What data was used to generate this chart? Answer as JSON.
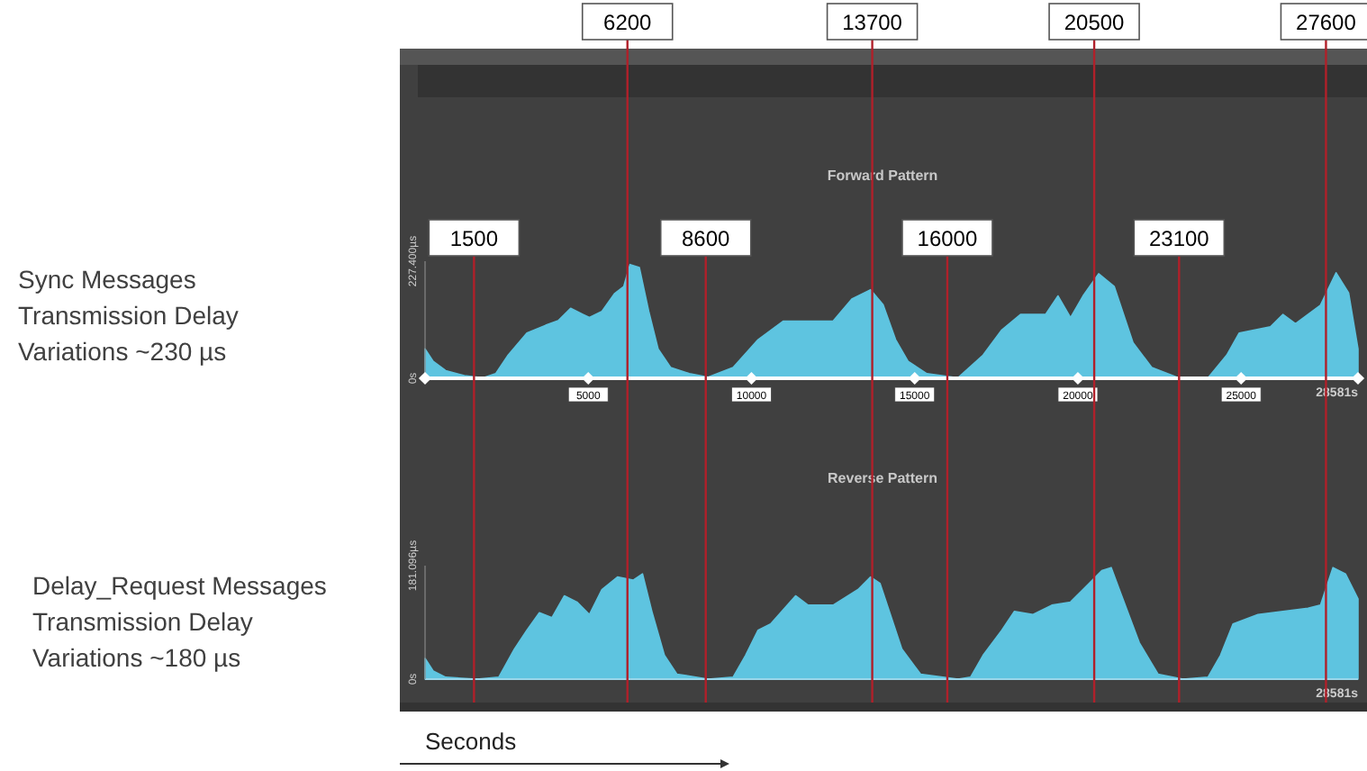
{
  "chart_data": [
    {
      "type": "area",
      "title": "Forward Pattern",
      "annotations": [
        "Sync Messages Transmission Delay Variations ~230 µs"
      ],
      "xlim": [
        0,
        28581
      ],
      "xticks": [
        5000,
        10000,
        15000,
        20000,
        25000,
        {
          "value": 28581,
          "label": "28581s"
        }
      ],
      "ylim": [
        0,
        227.4
      ],
      "yticks": [
        {
          "value": 0,
          "label": "0s"
        },
        {
          "value": 227.4,
          "label": "227.400µs"
        }
      ],
      "series": [
        {
          "color": "#5ec4e0",
          "x": [
            0,
            249,
            632,
            1206,
            1780,
            2163,
            2546,
            3120,
            3695,
            4077,
            4460,
            4843,
            5035,
            5418,
            5800,
            6087,
            6279,
            6566,
            6853,
            7140,
            7523,
            8097,
            8672,
            9437,
            10203,
            10969,
            11735,
            12500,
            13074,
            13649,
            14032,
            14415,
            14797,
            15372,
            16329,
            17095,
            17669,
            18243,
            19009,
            19392,
            19775,
            20158,
            20636,
            21115,
            21689,
            22263,
            23029,
            23986,
            24560,
            24943,
            25900,
            26283,
            26666,
            27431,
            27910,
            28293,
            28581
          ],
          "values": [
            57,
            33,
            15,
            5,
            1,
            9,
            45,
            88,
            103,
            112,
            136,
            124,
            118,
            130,
            164,
            178,
            221,
            215,
            130,
            57,
            21,
            9,
            2,
            21,
            75,
            111,
            111,
            111,
            154,
            172,
            143,
            75,
            33,
            9,
            1,
            45,
            94,
            124,
            124,
            160,
            118,
            160,
            203,
            178,
            69,
            21,
            2,
            1,
            45,
            88,
            100,
            124,
            106,
            142,
            205,
            166,
            57
          ]
        }
      ],
      "ref_lines": [
        {
          "axis": "x",
          "value": 1500,
          "label": "1500",
          "color": "#b0202a"
        },
        {
          "axis": "x",
          "value": 6200,
          "label": "6200",
          "color": "#b0202a"
        },
        {
          "axis": "x",
          "value": 8600,
          "label": "8600",
          "color": "#b0202a"
        },
        {
          "axis": "x",
          "value": 13700,
          "label": "13700",
          "color": "#b0202a"
        },
        {
          "axis": "x",
          "value": 16000,
          "label": "16000",
          "color": "#b0202a"
        },
        {
          "axis": "x",
          "value": 20500,
          "label": "20500",
          "color": "#b0202a"
        },
        {
          "axis": "x",
          "value": 23100,
          "label": "23100",
          "color": "#b0202a"
        },
        {
          "axis": "x",
          "value": 27600,
          "label": "27600",
          "color": "#b0202a"
        }
      ]
    },
    {
      "type": "area",
      "title": "Reverse Pattern",
      "xlabel": "Seconds",
      "annotations": [
        "Delay_Request Messages Transmission Delay Variations ~180 µs",
        {
          "text": "28581s",
          "x": 28581,
          "y": 0
        }
      ],
      "xlim": [
        0,
        28581
      ],
      "tick_labels": "y",
      "ylim": [
        0,
        181.096
      ],
      "yticks": [
        {
          "value": 0,
          "label": "0s"
        },
        {
          "value": 181.096,
          "label": "181.096µs"
        }
      ],
      "series": [
        {
          "color": "#5ec4e0",
          "x": [
            0,
            249,
            632,
            1589,
            2259,
            2737,
            3120,
            3503,
            3886,
            4269,
            4652,
            5035,
            5418,
            5896,
            6375,
            6662,
            6949,
            7332,
            7715,
            8672,
            9437,
            9820,
            10203,
            10586,
            11352,
            11735,
            12500,
            13266,
            13649,
            13936,
            14223,
            14606,
            15181,
            16329,
            16712,
            17095,
            17669,
            18052,
            18627,
            19201,
            19775,
            20349,
            20732,
            21019,
            21306,
            21881,
            22455,
            23221,
            23986,
            24369,
            24752,
            25518,
            26283,
            27049,
            27431,
            27814,
            28197,
            28581
          ],
          "values": [
            33,
            13,
            3,
            0,
            3,
            48,
            78,
            106,
            98,
            133,
            123,
            103,
            143,
            163,
            158,
            168,
            108,
            38,
            8,
            0,
            3,
            38,
            78,
            88,
            133,
            118,
            118,
            143,
            163,
            153,
            108,
            48,
            8,
            0,
            3,
            38,
            78,
            108,
            103,
            118,
            123,
            153,
            173,
            178,
            138,
            58,
            8,
            0,
            3,
            38,
            88,
            103,
            108,
            113,
            118,
            178,
            168,
            128
          ]
        }
      ],
      "ref_lines": [
        {
          "axis": "x",
          "value": 1500,
          "color": "#b0202a"
        },
        {
          "axis": "x",
          "value": 6200,
          "color": "#b0202a"
        },
        {
          "axis": "x",
          "value": 8600,
          "color": "#b0202a"
        },
        {
          "axis": "x",
          "value": 13700,
          "color": "#b0202a"
        },
        {
          "axis": "x",
          "value": 16000,
          "color": "#b0202a"
        },
        {
          "axis": "x",
          "value": 20500,
          "color": "#b0202a"
        },
        {
          "axis": "x",
          "value": 23100,
          "color": "#b0202a"
        },
        {
          "axis": "x",
          "value": 27600,
          "color": "#b0202a"
        }
      ]
    }
  ]
}
